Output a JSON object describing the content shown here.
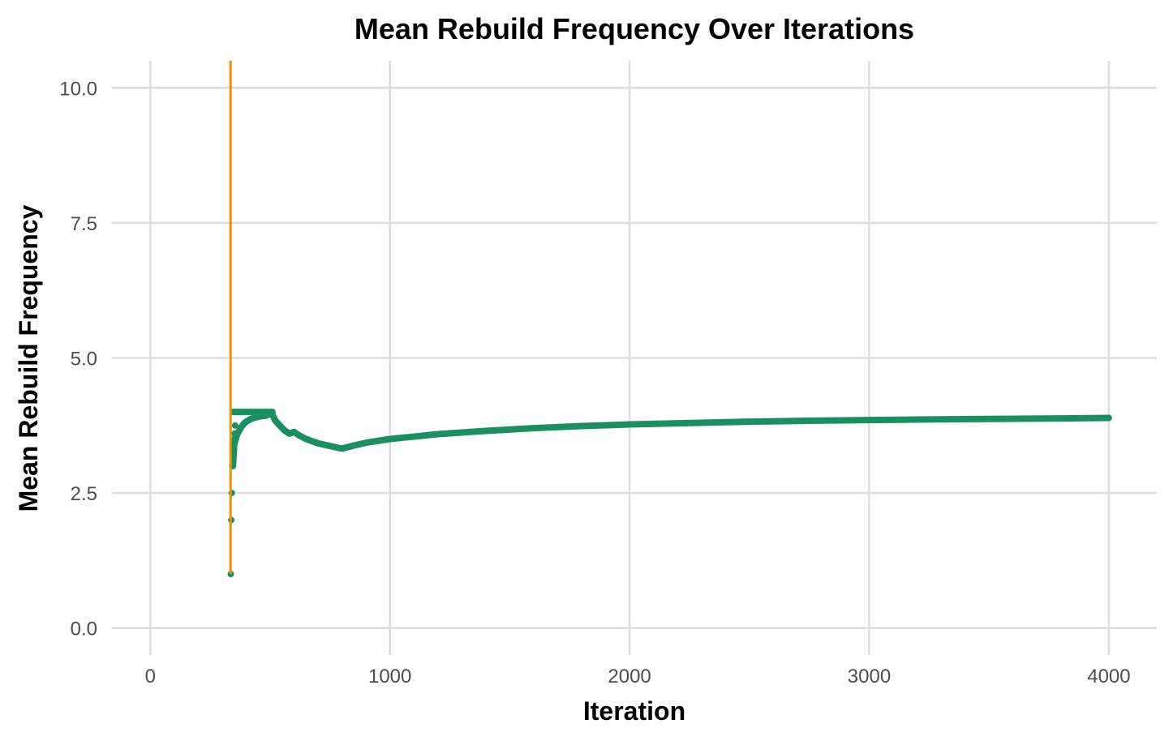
{
  "chart_data": {
    "type": "line",
    "title": "Mean Rebuild Frequency Over Iterations",
    "xlabel": "Iteration",
    "ylabel": "Mean Rebuild Frequency",
    "xlim": [
      -160,
      4200
    ],
    "ylim": [
      -0.5,
      10.5
    ],
    "x_ticks": [
      0,
      1000,
      2000,
      3000,
      4000
    ],
    "x_tick_labels": [
      "0",
      "1000",
      "2000",
      "3000",
      "4000"
    ],
    "y_ticks": [
      0,
      2.5,
      5,
      7.5,
      10
    ],
    "y_tick_labels": [
      "0.0",
      "2.5",
      "5.0",
      "7.5",
      "10.0"
    ],
    "grid": true,
    "legend": "none",
    "colors": {
      "main_series": "#1a8f60",
      "vertical_line": "#e69500",
      "grid": "#dedede"
    },
    "series": [
      {
        "style": "line",
        "color": "#1a8f60",
        "x": [
          345,
          350,
          360,
          370,
          380,
          390,
          400,
          420,
          440,
          460,
          480,
          500,
          510,
          520,
          540,
          560,
          580,
          600,
          620,
          650,
          700,
          750,
          800,
          850,
          900,
          1000,
          1200,
          1400,
          1600,
          1800,
          2000,
          2200,
          2500,
          2800,
          3000,
          3200,
          3500,
          3800,
          4000
        ],
        "y": [
          3.0,
          3.4,
          3.55,
          3.65,
          3.72,
          3.78,
          3.82,
          3.87,
          3.9,
          3.92,
          3.93,
          3.96,
          3.95,
          3.85,
          3.75,
          3.66,
          3.6,
          3.63,
          3.57,
          3.5,
          3.42,
          3.37,
          3.32,
          3.38,
          3.43,
          3.5,
          3.59,
          3.65,
          3.7,
          3.74,
          3.77,
          3.79,
          3.82,
          3.84,
          3.85,
          3.86,
          3.87,
          3.88,
          3.89
        ]
      },
      {
        "style": "line",
        "color": "#1a8f60",
        "x": [
          345,
          350,
          360,
          370,
          380,
          400,
          450,
          500,
          510
        ],
        "y": [
          4.0,
          4.0,
          4.0,
          4.0,
          4.0,
          4.0,
          4.0,
          4.0,
          4.0
        ]
      },
      {
        "style": "points",
        "color": "#1a8f60",
        "x": [
          336,
          338,
          340,
          342,
          344,
          346,
          348,
          350,
          352,
          354,
          356
        ],
        "y": [
          1.0,
          2.0,
          2.5,
          3.0,
          3.0,
          3.25,
          3.33,
          3.5,
          3.6,
          3.75,
          4.0
        ]
      },
      {
        "style": "vline",
        "color": "#e69500",
        "x": [
          335,
          335
        ],
        "y": [
          1.0,
          10.5
        ]
      }
    ]
  }
}
